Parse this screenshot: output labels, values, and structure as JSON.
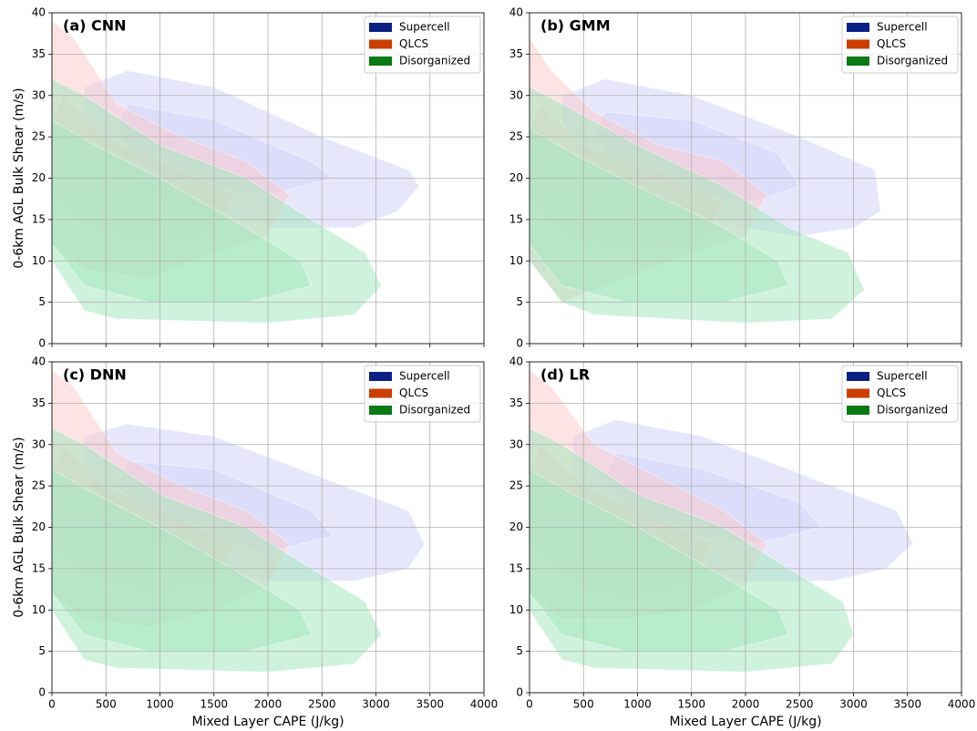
{
  "chart_data": [
    {
      "type": "kde",
      "title": "(a) CNN",
      "ylabel": "0-6km AGL Bulk Shear (m/s)",
      "xlim": [
        0,
        4000
      ],
      "ylim": [
        0,
        40
      ],
      "xticks": [
        0,
        500,
        1000,
        1500,
        2000,
        2500,
        3000,
        3500,
        4000
      ],
      "yticks": [
        0,
        5,
        10,
        15,
        20,
        25,
        30,
        35,
        40
      ],
      "grid": true,
      "legend": "upper right",
      "series": [
        {
          "name": "Supercell",
          "color": "#0b1f85",
          "fill": "#d4d4fa",
          "levels": [
            {
              "x": [
                300,
                700,
                1500,
                2500,
                3300,
                3400,
                3200,
                2800,
                2000,
                1500,
                900,
                500,
                300
              ],
              "y": [
                31,
                33,
                31,
                25,
                21,
                19,
                16,
                14,
                14,
                16,
                18,
                22,
                27
              ]
            },
            {
              "x": [
                700,
                1500,
                2400,
                2600,
                2000,
                1300,
                800,
                600
              ],
              "y": [
                29,
                27,
                22,
                20,
                18,
                19,
                22,
                26
              ]
            }
          ]
        },
        {
          "name": "QLCS",
          "color": "#cc3d00",
          "fill": "#fccccc",
          "levels": [
            {
              "x": [
                0,
                200,
                600,
                1200,
                1800,
                2200,
                2000,
                1500,
                900,
                300,
                0
              ],
              "y": [
                39,
                37,
                29,
                25,
                22,
                18,
                13,
                11,
                8,
                9,
                12
              ]
            },
            {
              "x": [
                0,
                100,
                500,
                1200,
                1700,
                1500,
                900,
                300,
                0
              ],
              "y": [
                27,
                30,
                25,
                21,
                18,
                13,
                12,
                14,
                18
              ]
            }
          ]
        },
        {
          "name": "Disorganized",
          "color": "#0a7a14",
          "fill": "#a6e8bf",
          "levels": [
            {
              "x": [
                0,
                300,
                1000,
                1800,
                2400,
                2900,
                3050,
                2800,
                2000,
                600,
                300,
                0
              ],
              "y": [
                32,
                30,
                24,
                20,
                15,
                11,
                7,
                3.5,
                2.5,
                3,
                4,
                10
              ]
            },
            {
              "x": [
                0,
                400,
                1000,
                1800,
                2300,
                2400,
                1800,
                900,
                300,
                0
              ],
              "y": [
                27,
                24,
                20,
                14,
                10,
                7,
                5,
                5,
                7,
                12
              ]
            }
          ]
        }
      ]
    },
    {
      "type": "kde",
      "title": "(b) GMM",
      "xlim": [
        0,
        4000
      ],
      "ylim": [
        0,
        40
      ],
      "xticks": [
        0,
        500,
        1000,
        1500,
        2000,
        2500,
        3000,
        3500,
        4000
      ],
      "yticks": [
        0,
        5,
        10,
        15,
        20,
        25,
        30,
        35,
        40
      ],
      "grid": true,
      "legend": "upper right",
      "series": [
        {
          "name": "Supercell",
          "color": "#0b1f85",
          "fill": "#d4d4fa",
          "levels": [
            {
              "x": [
                300,
                700,
                1500,
                2500,
                3200,
                3250,
                3000,
                2500,
                2000,
                1500,
                900,
                500,
                300
              ],
              "y": [
                30,
                32,
                30,
                25,
                21,
                16,
                14,
                13,
                14,
                16,
                19,
                23,
                27
              ]
            },
            {
              "x": [
                700,
                1500,
                2300,
                2500,
                2000,
                1300,
                800,
                600
              ],
              "y": [
                28,
                27,
                23,
                19,
                17,
                19,
                22,
                25
              ]
            }
          ]
        },
        {
          "name": "QLCS",
          "color": "#cc3d00",
          "fill": "#fccccc",
          "levels": [
            {
              "x": [
                0,
                200,
                600,
                1200,
                1800,
                2200,
                2000,
                1500,
                900,
                300,
                0
              ],
              "y": [
                37,
                33,
                28,
                24,
                22,
                18,
                13,
                11,
                8,
                5,
                10
              ]
            },
            {
              "x": [
                0,
                100,
                500,
                1200,
                1800,
                1600,
                900,
                300,
                0
              ],
              "y": [
                26,
                29,
                24,
                21,
                17,
                12,
                11,
                13,
                17
              ]
            }
          ]
        },
        {
          "name": "Disorganized",
          "color": "#0a7a14",
          "fill": "#a6e8bf",
          "levels": [
            {
              "x": [
                0,
                300,
                1000,
                1800,
                2400,
                2950,
                3100,
                2800,
                2000,
                600,
                300,
                0
              ],
              "y": [
                31,
                29,
                24,
                19,
                14,
                11,
                6.5,
                3,
                2.5,
                3.5,
                5,
                10
              ]
            },
            {
              "x": [
                0,
                400,
                1000,
                1800,
                2300,
                2400,
                1800,
                900,
                300,
                0
              ],
              "y": [
                26,
                23,
                19,
                14,
                10,
                7,
                5,
                5,
                7,
                12
              ]
            }
          ]
        }
      ]
    },
    {
      "type": "kde",
      "title": "(c) DNN",
      "xlabel": "Mixed Layer CAPE (J/kg)",
      "ylabel": "0-6km AGL Bulk Shear (m/s)",
      "xlim": [
        0,
        4000
      ],
      "ylim": [
        0,
        40
      ],
      "xticks": [
        0,
        500,
        1000,
        1500,
        2000,
        2500,
        3000,
        3500,
        4000
      ],
      "yticks": [
        0,
        5,
        10,
        15,
        20,
        25,
        30,
        35,
        40
      ],
      "grid": true,
      "legend": "upper right",
      "series": [
        {
          "name": "Supercell",
          "color": "#0b1f85",
          "fill": "#d4d4fa",
          "levels": [
            {
              "x": [
                300,
                700,
                1500,
                2500,
                3300,
                3450,
                3300,
                2800,
                2000,
                1500,
                900,
                500,
                300
              ],
              "y": [
                31,
                32.5,
                31,
                26,
                22,
                18,
                15,
                13.5,
                13.5,
                15,
                18,
                22,
                27
              ]
            },
            {
              "x": [
                700,
                1500,
                2400,
                2600,
                2000,
                1300,
                800,
                600
              ],
              "y": [
                28,
                27,
                22,
                19,
                17,
                19,
                22,
                25
              ]
            }
          ]
        },
        {
          "name": "QLCS",
          "color": "#cc3d00",
          "fill": "#fccccc",
          "levels": [
            {
              "x": [
                0,
                200,
                600,
                1200,
                1800,
                2200,
                2000,
                1500,
                900,
                300,
                0
              ],
              "y": [
                39,
                37,
                29,
                25,
                22,
                18,
                13,
                10,
                8,
                9,
                12
              ]
            },
            {
              "x": [
                0,
                100,
                500,
                1200,
                1700,
                1500,
                900,
                300,
                0
              ],
              "y": [
                27,
                30,
                25,
                21,
                18,
                13,
                12,
                14,
                18
              ]
            }
          ]
        },
        {
          "name": "Disorganized",
          "color": "#0a7a14",
          "fill": "#a6e8bf",
          "levels": [
            {
              "x": [
                0,
                300,
                1000,
                1800,
                2400,
                2900,
                3050,
                2800,
                2000,
                600,
                300,
                0
              ],
              "y": [
                32,
                30,
                24,
                20,
                15,
                11,
                7,
                3.5,
                2.5,
                3,
                4,
                10
              ]
            },
            {
              "x": [
                0,
                400,
                1000,
                1800,
                2300,
                2400,
                1800,
                900,
                300,
                0
              ],
              "y": [
                27,
                24,
                20,
                14,
                10,
                7,
                5,
                5,
                7,
                12
              ]
            }
          ]
        }
      ]
    },
    {
      "type": "kde",
      "title": "(d) LR",
      "xlabel": "Mixed Layer CAPE (J/kg)",
      "xlim": [
        0,
        4000
      ],
      "ylim": [
        0,
        40
      ],
      "xticks": [
        0,
        500,
        1000,
        1500,
        2000,
        2500,
        3000,
        3500,
        4000
      ],
      "yticks": [
        0,
        5,
        10,
        15,
        20,
        25,
        30,
        35,
        40
      ],
      "grid": true,
      "legend": "upper right",
      "series": [
        {
          "name": "Supercell",
          "color": "#0b1f85",
          "fill": "#d4d4fa",
          "levels": [
            {
              "x": [
                400,
                800,
                1600,
                2600,
                3400,
                3550,
                3300,
                2800,
                2000,
                1500,
                900,
                500,
                400
              ],
              "y": [
                31,
                33,
                31,
                26,
                22,
                18,
                15,
                13.5,
                13.5,
                15,
                18,
                22,
                27
              ]
            },
            {
              "x": [
                800,
                1600,
                2500,
                2700,
                2100,
                1400,
                900,
                700
              ],
              "y": [
                29,
                27,
                23,
                20,
                18,
                19,
                22,
                26
              ]
            }
          ]
        },
        {
          "name": "QLCS",
          "color": "#cc3d00",
          "fill": "#fccccc",
          "levels": [
            {
              "x": [
                0,
                200,
                600,
                1200,
                1800,
                2200,
                2000,
                1500,
                900,
                300,
                0
              ],
              "y": [
                39,
                37,
                30,
                26,
                22,
                18,
                13,
                10,
                9,
                9,
                12
              ]
            },
            {
              "x": [
                0,
                100,
                500,
                1200,
                1700,
                1500,
                900,
                300,
                0
              ],
              "y": [
                27,
                30,
                25,
                21,
                18,
                13,
                11,
                14,
                18
              ]
            }
          ]
        },
        {
          "name": "Disorganized",
          "color": "#0a7a14",
          "fill": "#a6e8bf",
          "levels": [
            {
              "x": [
                0,
                300,
                1000,
                1800,
                2400,
                2900,
                3000,
                2800,
                2000,
                600,
                300,
                0
              ],
              "y": [
                32,
                30,
                24,
                20,
                15,
                11,
                7,
                3.5,
                2.5,
                3,
                4,
                10
              ]
            },
            {
              "x": [
                0,
                400,
                1000,
                1800,
                2300,
                2400,
                1800,
                900,
                300,
                0
              ],
              "y": [
                27,
                24,
                20,
                14,
                10,
                7,
                5,
                5,
                7,
                12
              ]
            }
          ]
        }
      ]
    }
  ]
}
